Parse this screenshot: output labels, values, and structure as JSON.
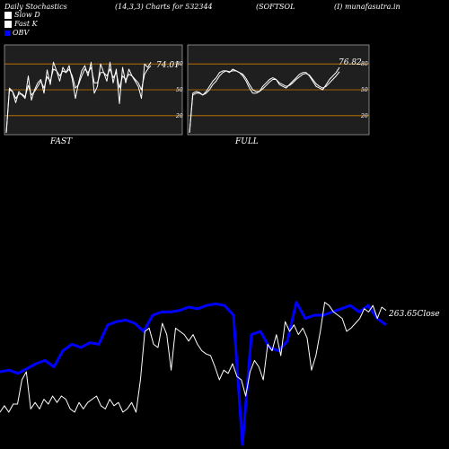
{
  "header": {
    "title": "Daily Stochastics",
    "params": "(14,3,3) Charts for 532344",
    "symbol": "(SOFTSOL",
    "site": "(I) munafasutra.in"
  },
  "legend": [
    {
      "label": "Slow  D",
      "swatch": "white"
    },
    {
      "label": "Fast K",
      "swatch": "white"
    },
    {
      "label": "OBV",
      "swatch": "blue"
    }
  ],
  "panels": {
    "fast_label": "FAST",
    "full_label": "FULL",
    "fast_value": "74.01",
    "full_value": "76.82"
  },
  "bottom": {
    "close_label": "263.65Close"
  },
  "colors": {
    "line": "#ffffff",
    "obv": "#0000ff",
    "level": "#cc7a00",
    "panel_bg": "#1f1f1f"
  },
  "chart_data": [
    {
      "type": "line",
      "panel": "FAST",
      "ylim": [
        0,
        100
      ],
      "yticks": [
        20,
        50,
        80
      ],
      "levels": [
        20,
        50,
        80
      ],
      "series": [
        {
          "values": [
            0,
            52,
            48,
            35,
            48,
            44,
            40,
            66,
            38,
            50,
            58,
            62,
            46,
            73,
            56,
            82,
            72,
            60,
            76,
            70,
            78,
            62,
            40,
            58,
            72,
            78,
            66,
            82,
            46,
            54,
            80,
            70,
            60,
            82,
            58,
            74,
            34,
            76,
            58,
            74,
            66,
            60,
            54,
            40,
            80,
            76,
            82
          ]
        },
        {
          "values": [
            0,
            50,
            48,
            40,
            45,
            45,
            42,
            55,
            44,
            48,
            54,
            60,
            52,
            65,
            60,
            74,
            72,
            66,
            72,
            70,
            74,
            66,
            52,
            56,
            66,
            74,
            70,
            76,
            58,
            58,
            70,
            70,
            66,
            74,
            64,
            70,
            52,
            66,
            62,
            68,
            66,
            62,
            58,
            50,
            68,
            74,
            78
          ]
        }
      ]
    },
    {
      "type": "line",
      "panel": "FULL",
      "ylim": [
        0,
        100
      ],
      "yticks": [
        20,
        50,
        80
      ],
      "levels": [
        20,
        50,
        80
      ],
      "series": [
        {
          "values": [
            0,
            46,
            48,
            47,
            44,
            48,
            54,
            60,
            64,
            70,
            72,
            72,
            70,
            74,
            72,
            70,
            66,
            60,
            52,
            46,
            46,
            48,
            54,
            58,
            62,
            64,
            62,
            56,
            54,
            52,
            56,
            60,
            64,
            68,
            70,
            70,
            66,
            60,
            54,
            52,
            50,
            56,
            62,
            66,
            70,
            76
          ]
        },
        {
          "values": [
            0,
            44,
            46,
            46,
            44,
            46,
            50,
            56,
            60,
            66,
            70,
            72,
            71,
            72,
            72,
            70,
            68,
            63,
            56,
            50,
            48,
            48,
            51,
            55,
            59,
            62,
            62,
            58,
            56,
            54,
            55,
            58,
            62,
            65,
            68,
            69,
            67,
            62,
            57,
            54,
            52,
            54,
            58,
            62,
            66,
            71
          ]
        }
      ]
    },
    {
      "type": "line",
      "panel": "BOTTOM",
      "ylim": [
        0,
        100
      ],
      "series": [
        {
          "name": "OBV",
          "values": [
            45,
            46,
            44,
            47,
            50,
            52,
            48,
            58,
            62,
            60,
            63,
            62,
            74,
            76,
            77,
            75,
            70,
            80,
            82,
            82,
            83,
            85,
            84,
            86,
            87,
            86,
            80,
            0,
            68,
            70,
            60,
            58,
            64,
            88,
            78,
            80,
            80,
            82,
            84,
            86,
            82,
            86,
            78,
            74
          ]
        },
        {
          "name": "Close",
          "values": [
            20,
            24,
            20,
            25,
            25,
            40,
            45,
            22,
            26,
            22,
            28,
            25,
            30,
            26,
            30,
            28,
            22,
            20,
            26,
            22,
            26,
            28,
            30,
            24,
            22,
            28,
            24,
            26,
            20,
            22,
            26,
            20,
            40,
            70,
            72,
            62,
            60,
            75,
            68,
            46,
            72,
            70,
            68,
            64,
            68,
            62,
            58,
            56,
            55,
            48,
            40,
            46,
            44,
            50,
            42,
            40,
            30,
            45,
            52,
            48,
            40,
            62,
            58,
            68,
            55,
            76,
            70,
            74,
            68,
            72,
            66,
            46,
            55,
            70,
            88,
            86,
            82,
            80,
            78,
            70,
            72,
            75,
            78,
            84,
            82,
            86,
            78,
            85,
            83
          ]
        }
      ]
    }
  ]
}
